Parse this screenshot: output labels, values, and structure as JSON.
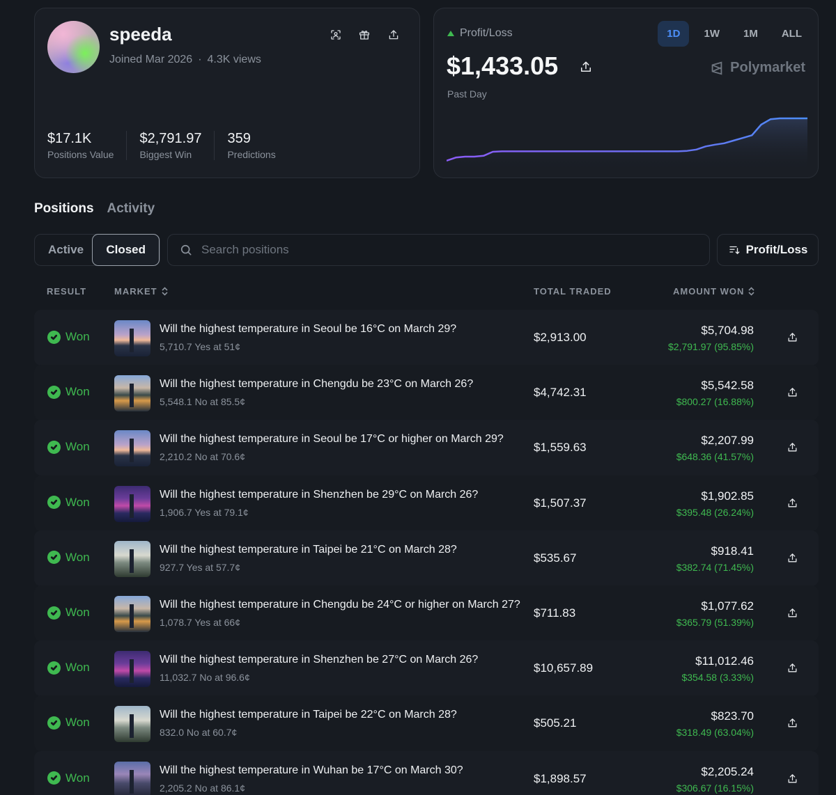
{
  "profile": {
    "username": "speeda",
    "joined": "Joined Mar 2026",
    "views": "4.3K views",
    "stats": [
      {
        "value": "$17.1K",
        "label": "Positions Value"
      },
      {
        "value": "$2,791.97",
        "label": "Biggest Win"
      },
      {
        "value": "359",
        "label": "Predictions"
      }
    ]
  },
  "pnl": {
    "label": "Profit/Loss",
    "value": "$1,433.05",
    "period": "Past Day",
    "ranges": [
      "1D",
      "1W",
      "1M",
      "ALL"
    ],
    "active_range": "1D",
    "brand": "Polymarket",
    "series": [
      0.05,
      0.12,
      0.14,
      0.14,
      0.16,
      0.25,
      0.26,
      0.26,
      0.26,
      0.26,
      0.26,
      0.26,
      0.26,
      0.26,
      0.26,
      0.26,
      0.26,
      0.26,
      0.26,
      0.26,
      0.26,
      0.26,
      0.26,
      0.26,
      0.26,
      0.26,
      0.27,
      0.3,
      0.37,
      0.41,
      0.44,
      0.5,
      0.56,
      0.62,
      0.86,
      0.98,
      1.0,
      1.0,
      1.0,
      1.0
    ]
  },
  "tabs": [
    {
      "label": "Positions",
      "active": true
    },
    {
      "label": "Activity",
      "active": false
    }
  ],
  "filters": {
    "active_label": "Active",
    "closed_label": "Closed",
    "search_placeholder": "Search positions",
    "sort_label": "Profit/Loss"
  },
  "table": {
    "headers": {
      "result": "RESULT",
      "market": "MARKET",
      "total_traded": "TOTAL TRADED",
      "amount_won": "AMOUNT WON"
    },
    "rows": [
      {
        "result": "Won",
        "thumb": "seoul",
        "title": "Will the highest temperature in Seoul be 16°C on March 29?",
        "sub": "5,710.7 Yes at 51¢",
        "traded": "$2,913.00",
        "amount": "$5,704.98",
        "gain": "$2,791.97 (95.85%)"
      },
      {
        "result": "Won",
        "thumb": "chengdu",
        "title": "Will the highest temperature in Chengdu be 23°C on March 26?",
        "sub": "5,548.1 No at 85.5¢",
        "traded": "$4,742.31",
        "amount": "$5,542.58",
        "gain": "$800.27 (16.88%)"
      },
      {
        "result": "Won",
        "thumb": "seoul",
        "title": "Will the highest temperature in Seoul be 17°C or higher on March 29?",
        "sub": "2,210.2 No at 70.6¢",
        "traded": "$1,559.63",
        "amount": "$2,207.99",
        "gain": "$648.36 (41.57%)"
      },
      {
        "result": "Won",
        "thumb": "shenzhen",
        "title": "Will the highest temperature in Shenzhen be 29°C on March 26?",
        "sub": "1,906.7 Yes at 79.1¢",
        "traded": "$1,507.37",
        "amount": "$1,902.85",
        "gain": "$395.48 (26.24%)"
      },
      {
        "result": "Won",
        "thumb": "taipei",
        "title": "Will the highest temperature in Taipei be 21°C on March 28?",
        "sub": "927.7 Yes at 57.7¢",
        "traded": "$535.67",
        "amount": "$918.41",
        "gain": "$382.74 (71.45%)"
      },
      {
        "result": "Won",
        "thumb": "chengdu",
        "title": "Will the highest temperature in Chengdu be 24°C or higher on March 27?",
        "sub": "1,078.7 Yes at 66¢",
        "traded": "$711.83",
        "amount": "$1,077.62",
        "gain": "$365.79 (51.39%)"
      },
      {
        "result": "Won",
        "thumb": "shenzhen",
        "title": "Will the highest temperature in Shenzhen be 27°C on March 26?",
        "sub": "11,032.7 No at 96.6¢",
        "traded": "$10,657.89",
        "amount": "$11,012.46",
        "gain": "$354.58 (3.33%)"
      },
      {
        "result": "Won",
        "thumb": "taipei",
        "title": "Will the highest temperature in Taipei be 22°C on March 28?",
        "sub": "832.0 No at 60.7¢",
        "traded": "$505.21",
        "amount": "$823.70",
        "gain": "$318.49 (63.04%)"
      },
      {
        "result": "Won",
        "thumb": "wuhan",
        "title": "Will the highest temperature in Wuhan be 17°C on March 30?",
        "sub": "2,205.2 No at 86.1¢",
        "traded": "$1,898.57",
        "amount": "$2,205.24",
        "gain": "$306.67 (16.15%)"
      }
    ]
  },
  "colors": {
    "background": "#15191f",
    "card": "#1a1e25",
    "accent_blue": "#4c8ef7",
    "positive_green": "#3fb950",
    "chart_line_start": "#8b5cf6",
    "chart_line_end": "#4c8ef7"
  }
}
